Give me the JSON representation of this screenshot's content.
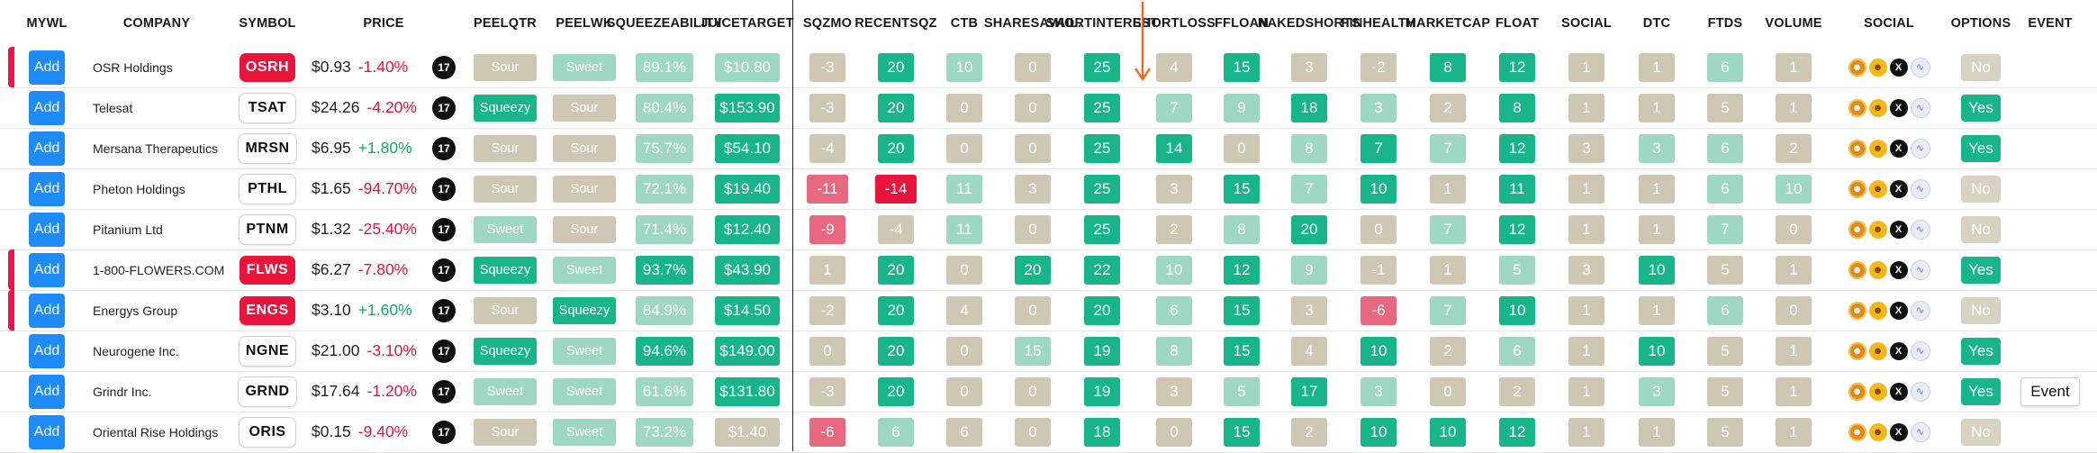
{
  "colors": {
    "dark_green": "#18b48a",
    "light_green": "#9ed8c4",
    "tan": "#cec7b3",
    "red": "#e8143c",
    "pink": "#e8697f",
    "add_blue": "#1d8cf8",
    "arrow": "#f26522"
  },
  "headers": [
    [
      "MYWL"
    ],
    [
      "COMPANY"
    ],
    [
      "SYMBOL"
    ],
    [
      "PRICE"
    ],
    [
      "PEEL",
      "QTR"
    ],
    [
      "PEEL",
      "WK"
    ],
    [
      "SQUEEZE",
      "ABILITY"
    ],
    [
      "JUICE",
      "TARGET"
    ],
    [
      "SQZ",
      "MO"
    ],
    [
      "RECENT",
      "SQZ"
    ],
    [
      "CTB"
    ],
    [
      "SHARES",
      "AVAIL."
    ],
    [
      "SHORT",
      "INTEREST"
    ],
    [
      "SHORT",
      "LOSS"
    ],
    [
      "FF",
      "LOAN"
    ],
    [
      "NAKED",
      "SHORTS"
    ],
    [
      "FIN",
      "HEALTH"
    ],
    [
      "MARKET",
      "CAP"
    ],
    [
      "FLOAT"
    ],
    [
      "SOCIAL"
    ],
    [
      "DTC"
    ],
    [
      "FTDS"
    ],
    [
      "VOLUME"
    ],
    [
      "SOCIAL"
    ],
    [
      "OPTIONS"
    ],
    [
      "EVENT"
    ]
  ],
  "add_label": "Add",
  "tv_icon_text": "17",
  "social_icons": [
    "memecoin-icon",
    "doge-icon",
    "x-icon",
    "stocktwits-icon"
  ],
  "social_glyphs": [
    "☻",
    "☻",
    "X",
    "∿"
  ],
  "rows": [
    {
      "watch": true,
      "company": "OSR Holdings",
      "symbol": "OSRH",
      "symbol_style": "red",
      "price": "$0.93",
      "change": "-1.40%",
      "change_dir": "neg",
      "peel_qtr": {
        "t": "Sour",
        "c": "tan"
      },
      "peel_wk": {
        "t": "Sweet",
        "c": "lg"
      },
      "squeeze": {
        "t": "89.1%",
        "c": "lg"
      },
      "juice": {
        "t": "$10.80",
        "c": "lg"
      },
      "metrics": [
        [
          "-3",
          "tan"
        ],
        [
          "20",
          "dg"
        ],
        [
          "10",
          "lg"
        ],
        [
          "0",
          "tan"
        ],
        [
          "25",
          "dg"
        ],
        [
          "4",
          "tan"
        ],
        [
          "15",
          "dg"
        ],
        [
          "3",
          "tan"
        ],
        [
          "-2",
          "tan"
        ],
        [
          "8",
          "dg"
        ],
        [
          "12",
          "dg"
        ],
        [
          "1",
          "tan"
        ],
        [
          "1",
          "tan"
        ],
        [
          "6",
          "lg"
        ],
        [
          "1",
          "tan"
        ]
      ],
      "options": "No",
      "event": ""
    },
    {
      "watch": false,
      "company": "Telesat",
      "symbol": "TSAT",
      "symbol_style": "white",
      "price": "$24.26",
      "change": "-4.20%",
      "change_dir": "neg",
      "peel_qtr": {
        "t": "Squeezy",
        "c": "dg"
      },
      "peel_wk": {
        "t": "Sour",
        "c": "tan"
      },
      "squeeze": {
        "t": "80.4%",
        "c": "lg"
      },
      "juice": {
        "t": "$153.90",
        "c": "dg"
      },
      "metrics": [
        [
          "-3",
          "tan"
        ],
        [
          "20",
          "dg"
        ],
        [
          "0",
          "tan"
        ],
        [
          "0",
          "tan"
        ],
        [
          "25",
          "dg"
        ],
        [
          "7",
          "lg"
        ],
        [
          "9",
          "lg"
        ],
        [
          "18",
          "dg"
        ],
        [
          "3",
          "lg"
        ],
        [
          "2",
          "tan"
        ],
        [
          "8",
          "dg"
        ],
        [
          "1",
          "tan"
        ],
        [
          "1",
          "tan"
        ],
        [
          "5",
          "tan"
        ],
        [
          "1",
          "tan"
        ]
      ],
      "options": "Yes",
      "event": ""
    },
    {
      "watch": false,
      "company": "Mersana Therapeutics",
      "symbol": "MRSN",
      "symbol_style": "white",
      "price": "$6.95",
      "change": "+1.80%",
      "change_dir": "pos",
      "peel_qtr": {
        "t": "Sour",
        "c": "tan"
      },
      "peel_wk": {
        "t": "Sour",
        "c": "tan"
      },
      "squeeze": {
        "t": "75.7%",
        "c": "lg"
      },
      "juice": {
        "t": "$54.10",
        "c": "dg"
      },
      "metrics": [
        [
          "-4",
          "tan"
        ],
        [
          "20",
          "dg"
        ],
        [
          "0",
          "tan"
        ],
        [
          "0",
          "tan"
        ],
        [
          "25",
          "dg"
        ],
        [
          "14",
          "dg"
        ],
        [
          "0",
          "tan"
        ],
        [
          "8",
          "lg"
        ],
        [
          "7",
          "dg"
        ],
        [
          "7",
          "lg"
        ],
        [
          "12",
          "dg"
        ],
        [
          "3",
          "tan"
        ],
        [
          "3",
          "lg"
        ],
        [
          "6",
          "lg"
        ],
        [
          "2",
          "tan"
        ]
      ],
      "options": "Yes",
      "event": ""
    },
    {
      "watch": false,
      "company": "Pheton Holdings",
      "symbol": "PTHL",
      "symbol_style": "white",
      "price": "$1.65",
      "change": "-94.70%",
      "change_dir": "neg",
      "peel_qtr": {
        "t": "Sour",
        "c": "tan"
      },
      "peel_wk": {
        "t": "Sour",
        "c": "tan"
      },
      "squeeze": {
        "t": "72.1%",
        "c": "lg"
      },
      "juice": {
        "t": "$19.40",
        "c": "dg"
      },
      "metrics": [
        [
          "-11",
          "pk"
        ],
        [
          "-14",
          "rd"
        ],
        [
          "11",
          "lg"
        ],
        [
          "3",
          "tan"
        ],
        [
          "25",
          "dg"
        ],
        [
          "3",
          "tan"
        ],
        [
          "15",
          "dg"
        ],
        [
          "7",
          "lg"
        ],
        [
          "10",
          "dg"
        ],
        [
          "1",
          "tan"
        ],
        [
          "11",
          "dg"
        ],
        [
          "1",
          "tan"
        ],
        [
          "1",
          "tan"
        ],
        [
          "6",
          "lg"
        ],
        [
          "10",
          "lg"
        ]
      ],
      "options": "No",
      "event": ""
    },
    {
      "watch": false,
      "company": "Pitanium Ltd",
      "symbol": "PTNM",
      "symbol_style": "white",
      "price": "$1.32",
      "change": "-25.40%",
      "change_dir": "neg",
      "peel_qtr": {
        "t": "Sweet",
        "c": "lg"
      },
      "peel_wk": {
        "t": "Sour",
        "c": "tan"
      },
      "squeeze": {
        "t": "71.4%",
        "c": "lg"
      },
      "juice": {
        "t": "$12.40",
        "c": "dg"
      },
      "metrics": [
        [
          "-9",
          "pk"
        ],
        [
          "-4",
          "tan"
        ],
        [
          "11",
          "lg"
        ],
        [
          "0",
          "tan"
        ],
        [
          "25",
          "dg"
        ],
        [
          "2",
          "tan"
        ],
        [
          "8",
          "lg"
        ],
        [
          "20",
          "dg"
        ],
        [
          "0",
          "tan"
        ],
        [
          "7",
          "lg"
        ],
        [
          "12",
          "dg"
        ],
        [
          "1",
          "tan"
        ],
        [
          "1",
          "tan"
        ],
        [
          "7",
          "lg"
        ],
        [
          "0",
          "tan"
        ]
      ],
      "options": "No",
      "event": ""
    },
    {
      "watch": true,
      "company": "1-800-FLOWERS.COM",
      "symbol": "FLWS",
      "symbol_style": "red",
      "price": "$6.27",
      "change": "-7.80%",
      "change_dir": "neg",
      "peel_qtr": {
        "t": "Squeezy",
        "c": "dg"
      },
      "peel_wk": {
        "t": "Sweet",
        "c": "lg"
      },
      "squeeze": {
        "t": "93.7%",
        "c": "dg"
      },
      "juice": {
        "t": "$43.90",
        "c": "dg"
      },
      "metrics": [
        [
          "1",
          "tan"
        ],
        [
          "20",
          "dg"
        ],
        [
          "0",
          "tan"
        ],
        [
          "20",
          "dg"
        ],
        [
          "22",
          "dg"
        ],
        [
          "10",
          "lg"
        ],
        [
          "12",
          "dg"
        ],
        [
          "9",
          "lg"
        ],
        [
          "-1",
          "tan"
        ],
        [
          "1",
          "tan"
        ],
        [
          "5",
          "lg"
        ],
        [
          "3",
          "tan"
        ],
        [
          "10",
          "dg"
        ],
        [
          "5",
          "tan"
        ],
        [
          "1",
          "tan"
        ]
      ],
      "options": "Yes",
      "event": ""
    },
    {
      "watch": true,
      "company": "Energys Group",
      "symbol": "ENGS",
      "symbol_style": "red",
      "price": "$3.10",
      "change": "+1.60%",
      "change_dir": "pos",
      "peel_qtr": {
        "t": "Sour",
        "c": "tan"
      },
      "peel_wk": {
        "t": "Squeezy",
        "c": "dg"
      },
      "squeeze": {
        "t": "84.9%",
        "c": "lg"
      },
      "juice": {
        "t": "$14.50",
        "c": "dg"
      },
      "metrics": [
        [
          "-2",
          "tan"
        ],
        [
          "20",
          "dg"
        ],
        [
          "4",
          "tan"
        ],
        [
          "0",
          "tan"
        ],
        [
          "20",
          "dg"
        ],
        [
          "6",
          "lg"
        ],
        [
          "15",
          "dg"
        ],
        [
          "3",
          "tan"
        ],
        [
          "-6",
          "pk"
        ],
        [
          "7",
          "lg"
        ],
        [
          "10",
          "dg"
        ],
        [
          "1",
          "tan"
        ],
        [
          "1",
          "tan"
        ],
        [
          "6",
          "lg"
        ],
        [
          "0",
          "tan"
        ]
      ],
      "options": "No",
      "event": ""
    },
    {
      "watch": false,
      "company": "Neurogene Inc.",
      "symbol": "NGNE",
      "symbol_style": "white",
      "price": "$21.00",
      "change": "-3.10%",
      "change_dir": "neg",
      "peel_qtr": {
        "t": "Squeezy",
        "c": "dg"
      },
      "peel_wk": {
        "t": "Sweet",
        "c": "lg"
      },
      "squeeze": {
        "t": "94.6%",
        "c": "dg"
      },
      "juice": {
        "t": "$149.00",
        "c": "dg"
      },
      "metrics": [
        [
          "0",
          "tan"
        ],
        [
          "20",
          "dg"
        ],
        [
          "0",
          "tan"
        ],
        [
          "15",
          "lg"
        ],
        [
          "19",
          "dg"
        ],
        [
          "8",
          "lg"
        ],
        [
          "15",
          "dg"
        ],
        [
          "4",
          "tan"
        ],
        [
          "10",
          "dg"
        ],
        [
          "2",
          "tan"
        ],
        [
          "6",
          "lg"
        ],
        [
          "1",
          "tan"
        ],
        [
          "10",
          "dg"
        ],
        [
          "5",
          "tan"
        ],
        [
          "1",
          "tan"
        ]
      ],
      "options": "Yes",
      "event": ""
    },
    {
      "watch": false,
      "company": "Grindr Inc.",
      "symbol": "GRND",
      "symbol_style": "white",
      "price": "$17.64",
      "change": "-1.20%",
      "change_dir": "neg",
      "peel_qtr": {
        "t": "Sweet",
        "c": "lg"
      },
      "peel_wk": {
        "t": "Sweet",
        "c": "lg"
      },
      "squeeze": {
        "t": "61.6%",
        "c": "lg"
      },
      "juice": {
        "t": "$131.80",
        "c": "dg"
      },
      "metrics": [
        [
          "-3",
          "tan"
        ],
        [
          "20",
          "dg"
        ],
        [
          "0",
          "tan"
        ],
        [
          "0",
          "tan"
        ],
        [
          "19",
          "dg"
        ],
        [
          "3",
          "tan"
        ],
        [
          "5",
          "lg"
        ],
        [
          "17",
          "dg"
        ],
        [
          "3",
          "lg"
        ],
        [
          "0",
          "tan"
        ],
        [
          "2",
          "tan"
        ],
        [
          "1",
          "tan"
        ],
        [
          "3",
          "lg"
        ],
        [
          "5",
          "tan"
        ],
        [
          "1",
          "tan"
        ]
      ],
      "options": "Yes",
      "event": "Event"
    },
    {
      "watch": false,
      "company": "Oriental Rise Holdings",
      "symbol": "ORIS",
      "symbol_style": "white",
      "price": "$0.15",
      "change": "-9.40%",
      "change_dir": "neg",
      "peel_qtr": {
        "t": "Sour",
        "c": "tan"
      },
      "peel_wk": {
        "t": "Sweet",
        "c": "lg"
      },
      "squeeze": {
        "t": "73.2%",
        "c": "lg"
      },
      "juice": {
        "t": "$1.40",
        "c": "tan"
      },
      "metrics": [
        [
          "-6",
          "pk"
        ],
        [
          "6",
          "lg"
        ],
        [
          "6",
          "tan"
        ],
        [
          "0",
          "tan"
        ],
        [
          "18",
          "dg"
        ],
        [
          "0",
          "tan"
        ],
        [
          "15",
          "dg"
        ],
        [
          "2",
          "tan"
        ],
        [
          "10",
          "dg"
        ],
        [
          "10",
          "dg"
        ],
        [
          "12",
          "dg"
        ],
        [
          "1",
          "tan"
        ],
        [
          "1",
          "tan"
        ],
        [
          "5",
          "tan"
        ],
        [
          "1",
          "tan"
        ]
      ],
      "options": "No",
      "event": ""
    }
  ]
}
